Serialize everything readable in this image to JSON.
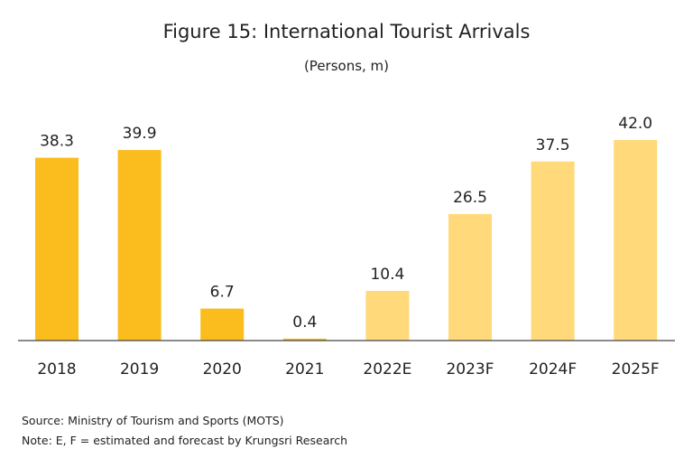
{
  "chart_data": {
    "type": "bar",
    "title": "Figure 15: International Tourist Arrivals",
    "subtitle": "(Persons, m)",
    "categories": [
      "2018",
      "2019",
      "2020",
      "2021",
      "2022E",
      "2023F",
      "2024F",
      "2025F"
    ],
    "values": [
      38.3,
      39.9,
      6.7,
      0.4,
      10.4,
      26.5,
      37.5,
      42.0
    ],
    "value_labels": [
      "38.3",
      "39.9",
      "6.7",
      "0.4",
      "10.4",
      "26.5",
      "37.5",
      "42.0"
    ],
    "bar_colors": [
      "#FBBD1E",
      "#FBBD1E",
      "#FBBD1E",
      "#FBBD1E",
      "#FFD97A",
      "#FFD97A",
      "#FFD97A",
      "#FFD97A"
    ],
    "ylim": [
      0,
      42
    ],
    "grid": false,
    "legend": "none",
    "axis_color": "#444444"
  },
  "footnotes": {
    "source": "Source: Ministry of Tourism and Sports (MOTS)",
    "note": "Note: E, F = estimated and forecast by Krungsri Research"
  }
}
